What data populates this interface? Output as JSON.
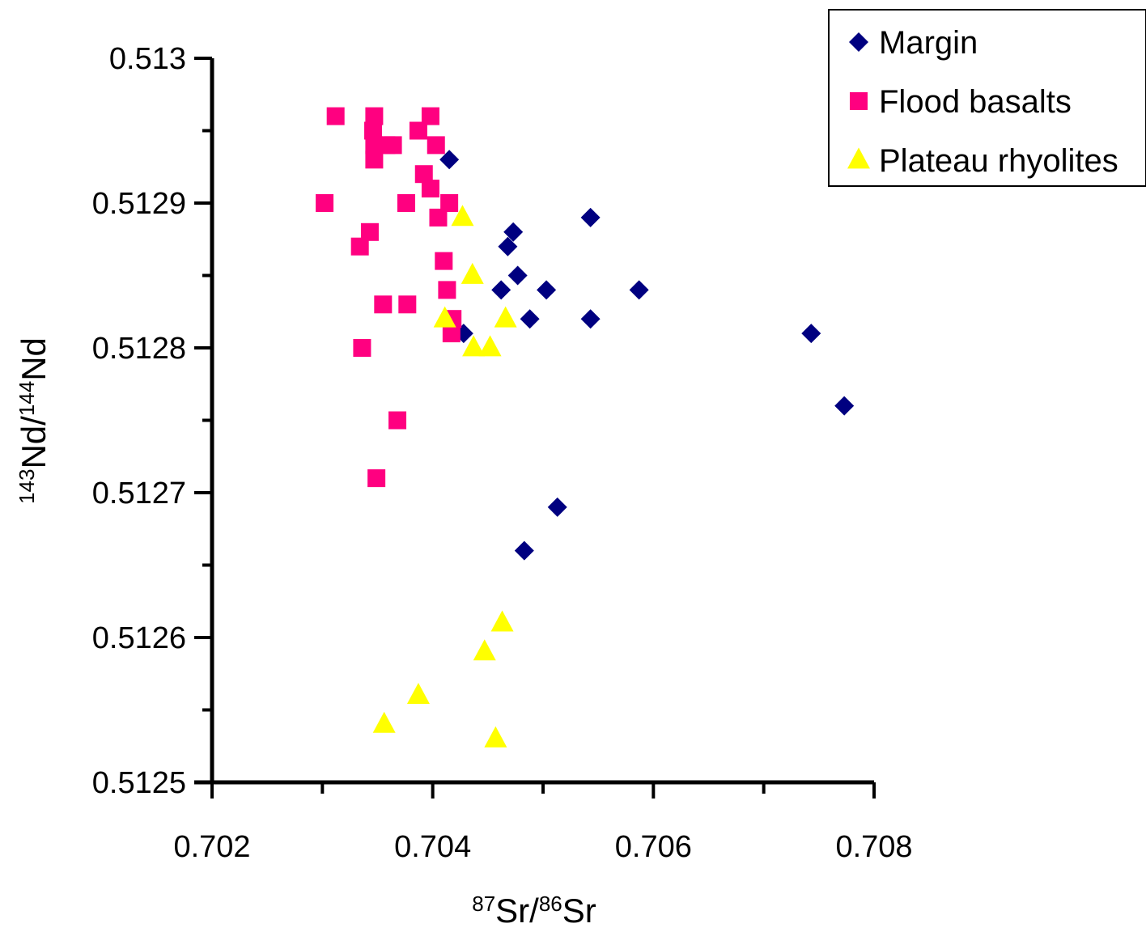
{
  "chart_data": {
    "type": "scatter",
    "title": "",
    "xlabel": {
      "sup1": "87",
      "base1": "Sr/",
      "sup2": "86",
      "base2": "Sr"
    },
    "ylabel": {
      "sup1": "143",
      "base1": "Nd/",
      "sup2": "144",
      "base2": "Nd"
    },
    "xlim": [
      0.702,
      0.708
    ],
    "ylim": [
      0.5125,
      0.513
    ],
    "x_ticks": [
      "0.702",
      "0.704",
      "0.706",
      "0.708"
    ],
    "y_ticks": [
      "0.5125",
      "0.5126",
      "0.5127",
      "0.5128",
      "0.5129",
      "0.513"
    ],
    "grid": false,
    "legend_position": "top-right",
    "series": [
      {
        "name": "Margin",
        "marker": "diamond",
        "color": "#000080",
        "points": [
          [
            0.70415,
            0.51293
          ],
          [
            0.70473,
            0.51288
          ],
          [
            0.70468,
            0.51287
          ],
          [
            0.70543,
            0.51289
          ],
          [
            0.70477,
            0.51285
          ],
          [
            0.70462,
            0.51284
          ],
          [
            0.70503,
            0.51284
          ],
          [
            0.70587,
            0.51284
          ],
          [
            0.70488,
            0.51282
          ],
          [
            0.70543,
            0.51282
          ],
          [
            0.70428,
            0.51281
          ],
          [
            0.70743,
            0.51281
          ],
          [
            0.70773,
            0.51276
          ],
          [
            0.70513,
            0.51269
          ],
          [
            0.70483,
            0.51266
          ]
        ]
      },
      {
        "name": "Flood basalts",
        "marker": "square",
        "color": "#ff0080",
        "points": [
          [
            0.70312,
            0.51296
          ],
          [
            0.70347,
            0.51296
          ],
          [
            0.70398,
            0.51296
          ],
          [
            0.70346,
            0.51295
          ],
          [
            0.70387,
            0.51295
          ],
          [
            0.70364,
            0.51294
          ],
          [
            0.70358,
            0.51294
          ],
          [
            0.70347,
            0.51294
          ],
          [
            0.70403,
            0.51294
          ],
          [
            0.70347,
            0.51293
          ],
          [
            0.70392,
            0.51292
          ],
          [
            0.70398,
            0.51291
          ],
          [
            0.70376,
            0.5129
          ],
          [
            0.70415,
            0.5129
          ],
          [
            0.70302,
            0.5129
          ],
          [
            0.70405,
            0.51289
          ],
          [
            0.70343,
            0.51288
          ],
          [
            0.70334,
            0.51287
          ],
          [
            0.7041,
            0.51286
          ],
          [
            0.70413,
            0.51284
          ],
          [
            0.70377,
            0.51283
          ],
          [
            0.70355,
            0.51283
          ],
          [
            0.70418,
            0.51282
          ],
          [
            0.70417,
            0.51281
          ],
          [
            0.70336,
            0.5128
          ],
          [
            0.70368,
            0.51275
          ],
          [
            0.70349,
            0.51271
          ]
        ]
      },
      {
        "name": "Plateau rhyolites",
        "marker": "triangle",
        "color": "#ffff00",
        "points": [
          [
            0.70427,
            0.51289
          ],
          [
            0.70436,
            0.51285
          ],
          [
            0.70411,
            0.51282
          ],
          [
            0.70466,
            0.51282
          ],
          [
            0.70437,
            0.5128
          ],
          [
            0.70452,
            0.5128
          ],
          [
            0.70463,
            0.51261
          ],
          [
            0.70447,
            0.51259
          ],
          [
            0.70387,
            0.51256
          ],
          [
            0.70356,
            0.51254
          ],
          [
            0.70457,
            0.51253
          ]
        ]
      }
    ]
  }
}
